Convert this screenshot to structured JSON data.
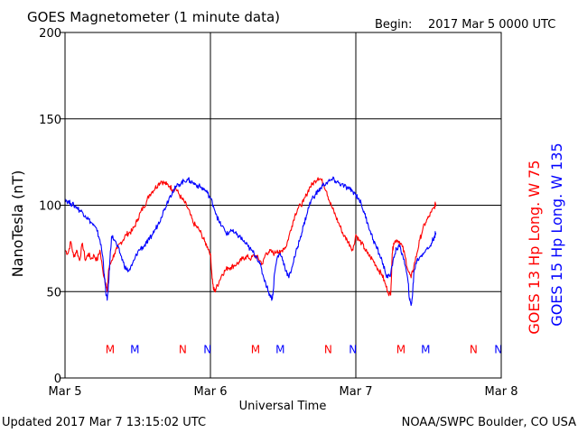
{
  "title": "GOES Magnetometer (1 minute data)",
  "begin_label": "Begin:",
  "begin_date": "2017 Mar 5 0000 UTC",
  "updated": "Updated 2017 Mar  7 13:15:02 UTC",
  "source": "NOAA/SWPC Boulder, CO USA",
  "colors": {
    "goes13": "#ff0000",
    "goes15": "#0000ff",
    "axis": "#000000",
    "background": "#ffffff"
  },
  "chart_data": {
    "type": "line",
    "xlabel": "Universal Time",
    "ylabel": "NanoTesla (nT)",
    "xlim": [
      0,
      3
    ],
    "ylim": [
      0,
      200
    ],
    "yticks": [
      0,
      50,
      100,
      150,
      200
    ],
    "xticks": [
      {
        "value": 0,
        "label": "Mar 5"
      },
      {
        "value": 1,
        "label": "Mar 6"
      },
      {
        "value": 2,
        "label": "Mar 7"
      },
      {
        "value": 3,
        "label": "Mar 8"
      }
    ],
    "grid": true,
    "series": [
      {
        "name": "GOES 13 Hp  Long. W 75",
        "color": "#ff0000",
        "points": [
          [
            0.0,
            74
          ],
          [
            0.02,
            72
          ],
          [
            0.04,
            79
          ],
          [
            0.06,
            70
          ],
          [
            0.08,
            74
          ],
          [
            0.1,
            68
          ],
          [
            0.12,
            78
          ],
          [
            0.14,
            68
          ],
          [
            0.16,
            72
          ],
          [
            0.18,
            69
          ],
          [
            0.2,
            71
          ],
          [
            0.22,
            68
          ],
          [
            0.24,
            74
          ],
          [
            0.26,
            62
          ],
          [
            0.28,
            55
          ],
          [
            0.29,
            50
          ],
          [
            0.3,
            63
          ],
          [
            0.32,
            68
          ],
          [
            0.34,
            72
          ],
          [
            0.36,
            75
          ],
          [
            0.38,
            78
          ],
          [
            0.4,
            80
          ],
          [
            0.42,
            83
          ],
          [
            0.44,
            84
          ],
          [
            0.46,
            85
          ],
          [
            0.48,
            88
          ],
          [
            0.5,
            92
          ],
          [
            0.52,
            96
          ],
          [
            0.54,
            99
          ],
          [
            0.56,
            102
          ],
          [
            0.58,
            106
          ],
          [
            0.6,
            108
          ],
          [
            0.62,
            110
          ],
          [
            0.64,
            112
          ],
          [
            0.66,
            114
          ],
          [
            0.68,
            113
          ],
          [
            0.7,
            112
          ],
          [
            0.72,
            111
          ],
          [
            0.74,
            109
          ],
          [
            0.76,
            110
          ],
          [
            0.78,
            107
          ],
          [
            0.8,
            104
          ],
          [
            0.82,
            102
          ],
          [
            0.84,
            99
          ],
          [
            0.86,
            95
          ],
          [
            0.88,
            90
          ],
          [
            0.9,
            88
          ],
          [
            0.92,
            86
          ],
          [
            0.94,
            83
          ],
          [
            0.96,
            79
          ],
          [
            0.98,
            76
          ],
          [
            1.0,
            72
          ],
          [
            1.01,
            60
          ],
          [
            1.02,
            52
          ],
          [
            1.03,
            50
          ],
          [
            1.04,
            52
          ],
          [
            1.06,
            56
          ],
          [
            1.08,
            60
          ],
          [
            1.1,
            62
          ],
          [
            1.12,
            64
          ],
          [
            1.14,
            64
          ],
          [
            1.16,
            65
          ],
          [
            1.18,
            66
          ],
          [
            1.2,
            67
          ],
          [
            1.22,
            69
          ],
          [
            1.24,
            70
          ],
          [
            1.26,
            70
          ],
          [
            1.28,
            69
          ],
          [
            1.3,
            71
          ],
          [
            1.32,
            70
          ],
          [
            1.34,
            68
          ],
          [
            1.36,
            66
          ],
          [
            1.38,
            72
          ],
          [
            1.4,
            73
          ],
          [
            1.42,
            73
          ],
          [
            1.44,
            72
          ],
          [
            1.46,
            74
          ],
          [
            1.48,
            72
          ],
          [
            1.5,
            75
          ],
          [
            1.52,
            76
          ],
          [
            1.54,
            82
          ],
          [
            1.56,
            88
          ],
          [
            1.58,
            94
          ],
          [
            1.6,
            98
          ],
          [
            1.62,
            100
          ],
          [
            1.64,
            102
          ],
          [
            1.66,
            106
          ],
          [
            1.68,
            110
          ],
          [
            1.7,
            112
          ],
          [
            1.72,
            114
          ],
          [
            1.74,
            116
          ],
          [
            1.76,
            115
          ],
          [
            1.78,
            112
          ],
          [
            1.8,
            108
          ],
          [
            1.82,
            102
          ],
          [
            1.84,
            98
          ],
          [
            1.86,
            94
          ],
          [
            1.88,
            90
          ],
          [
            1.9,
            86
          ],
          [
            1.92,
            82
          ],
          [
            1.94,
            80
          ],
          [
            1.96,
            77
          ],
          [
            1.98,
            74
          ],
          [
            2.0,
            83
          ],
          [
            2.02,
            80
          ],
          [
            2.04,
            78
          ],
          [
            2.06,
            75
          ],
          [
            2.08,
            72
          ],
          [
            2.1,
            70
          ],
          [
            2.12,
            68
          ],
          [
            2.14,
            65
          ],
          [
            2.16,
            62
          ],
          [
            2.18,
            60
          ],
          [
            2.2,
            55
          ],
          [
            2.22,
            50
          ],
          [
            2.24,
            48
          ],
          [
            2.25,
            72
          ],
          [
            2.26,
            78
          ],
          [
            2.28,
            80
          ],
          [
            2.3,
            79
          ],
          [
            2.32,
            76
          ],
          [
            2.34,
            70
          ],
          [
            2.36,
            62
          ],
          [
            2.38,
            58
          ],
          [
            2.4,
            65
          ],
          [
            2.42,
            72
          ],
          [
            2.44,
            80
          ],
          [
            2.46,
            86
          ],
          [
            2.48,
            90
          ],
          [
            2.5,
            93
          ],
          [
            2.52,
            96
          ],
          [
            2.54,
            99
          ],
          [
            2.55,
            101
          ]
        ]
      },
      {
        "name": "GOES 15 Hp  Long. W 135",
        "color": "#0000ff",
        "points": [
          [
            0.0,
            104
          ],
          [
            0.02,
            102
          ],
          [
            0.04,
            101
          ],
          [
            0.06,
            100
          ],
          [
            0.08,
            99
          ],
          [
            0.1,
            97
          ],
          [
            0.12,
            96
          ],
          [
            0.14,
            94
          ],
          [
            0.16,
            92
          ],
          [
            0.18,
            90
          ],
          [
            0.2,
            88
          ],
          [
            0.22,
            85
          ],
          [
            0.24,
            80
          ],
          [
            0.26,
            70
          ],
          [
            0.27,
            60
          ],
          [
            0.28,
            50
          ],
          [
            0.29,
            45
          ],
          [
            0.3,
            55
          ],
          [
            0.31,
            70
          ],
          [
            0.32,
            82
          ],
          [
            0.34,
            80
          ],
          [
            0.36,
            76
          ],
          [
            0.38,
            72
          ],
          [
            0.4,
            67
          ],
          [
            0.42,
            63
          ],
          [
            0.44,
            62
          ],
          [
            0.46,
            65
          ],
          [
            0.48,
            69
          ],
          [
            0.5,
            73
          ],
          [
            0.52,
            75
          ],
          [
            0.54,
            76
          ],
          [
            0.56,
            78
          ],
          [
            0.58,
            80
          ],
          [
            0.6,
            83
          ],
          [
            0.62,
            86
          ],
          [
            0.64,
            89
          ],
          [
            0.66,
            93
          ],
          [
            0.68,
            97
          ],
          [
            0.7,
            101
          ],
          [
            0.72,
            105
          ],
          [
            0.74,
            108
          ],
          [
            0.76,
            110
          ],
          [
            0.78,
            112
          ],
          [
            0.8,
            113
          ],
          [
            0.82,
            114
          ],
          [
            0.84,
            115
          ],
          [
            0.86,
            114
          ],
          [
            0.88,
            113
          ],
          [
            0.9,
            112
          ],
          [
            0.92,
            111
          ],
          [
            0.94,
            110
          ],
          [
            0.96,
            109
          ],
          [
            0.98,
            107
          ],
          [
            1.0,
            104
          ],
          [
            1.02,
            100
          ],
          [
            1.04,
            95
          ],
          [
            1.06,
            90
          ],
          [
            1.08,
            88
          ],
          [
            1.1,
            85
          ],
          [
            1.12,
            83
          ],
          [
            1.14,
            86
          ],
          [
            1.16,
            84
          ],
          [
            1.18,
            83
          ],
          [
            1.2,
            82
          ],
          [
            1.22,
            80
          ],
          [
            1.24,
            78
          ],
          [
            1.26,
            76
          ],
          [
            1.28,
            74
          ],
          [
            1.3,
            72
          ],
          [
            1.32,
            70
          ],
          [
            1.34,
            66
          ],
          [
            1.36,
            60
          ],
          [
            1.38,
            55
          ],
          [
            1.4,
            50
          ],
          [
            1.42,
            46
          ],
          [
            1.43,
            48
          ],
          [
            1.44,
            60
          ],
          [
            1.46,
            70
          ],
          [
            1.48,
            72
          ],
          [
            1.5,
            68
          ],
          [
            1.52,
            62
          ],
          [
            1.54,
            58
          ],
          [
            1.56,
            64
          ],
          [
            1.58,
            70
          ],
          [
            1.6,
            76
          ],
          [
            1.62,
            82
          ],
          [
            1.64,
            88
          ],
          [
            1.66,
            94
          ],
          [
            1.68,
            100
          ],
          [
            1.7,
            104
          ],
          [
            1.72,
            106
          ],
          [
            1.74,
            108
          ],
          [
            1.76,
            110
          ],
          [
            1.78,
            112
          ],
          [
            1.8,
            113
          ],
          [
            1.82,
            114
          ],
          [
            1.84,
            115
          ],
          [
            1.86,
            114
          ],
          [
            1.88,
            113
          ],
          [
            1.9,
            112
          ],
          [
            1.92,
            111
          ],
          [
            1.94,
            110
          ],
          [
            1.96,
            109
          ],
          [
            1.98,
            108
          ],
          [
            2.0,
            106
          ],
          [
            2.02,
            104
          ],
          [
            2.04,
            100
          ],
          [
            2.06,
            95
          ],
          [
            2.08,
            90
          ],
          [
            2.1,
            85
          ],
          [
            2.12,
            80
          ],
          [
            2.14,
            76
          ],
          [
            2.16,
            72
          ],
          [
            2.18,
            68
          ],
          [
            2.2,
            62
          ],
          [
            2.22,
            58
          ],
          [
            2.24,
            60
          ],
          [
            2.26,
            70
          ],
          [
            2.28,
            75
          ],
          [
            2.3,
            76
          ],
          [
            2.32,
            72
          ],
          [
            2.34,
            65
          ],
          [
            2.36,
            55
          ],
          [
            2.37,
            45
          ],
          [
            2.38,
            42
          ],
          [
            2.39,
            48
          ],
          [
            2.4,
            62
          ],
          [
            2.42,
            68
          ],
          [
            2.44,
            70
          ],
          [
            2.46,
            72
          ],
          [
            2.48,
            74
          ],
          [
            2.5,
            75
          ],
          [
            2.52,
            78
          ],
          [
            2.54,
            82
          ],
          [
            2.55,
            84
          ]
        ]
      }
    ],
    "markers": [
      {
        "label": "M",
        "x": 0.31,
        "color": "#ff0000"
      },
      {
        "label": "M",
        "x": 0.48,
        "color": "#0000ff"
      },
      {
        "label": "N",
        "x": 0.81,
        "color": "#ff0000"
      },
      {
        "label": "N",
        "x": 0.98,
        "color": "#0000ff"
      },
      {
        "label": "M",
        "x": 1.31,
        "color": "#ff0000"
      },
      {
        "label": "M",
        "x": 1.48,
        "color": "#0000ff"
      },
      {
        "label": "N",
        "x": 1.81,
        "color": "#ff0000"
      },
      {
        "label": "N",
        "x": 1.98,
        "color": "#0000ff"
      },
      {
        "label": "M",
        "x": 2.31,
        "color": "#ff0000"
      },
      {
        "label": "M",
        "x": 2.48,
        "color": "#0000ff"
      },
      {
        "label": "N",
        "x": 2.81,
        "color": "#ff0000"
      },
      {
        "label": "N",
        "x": 2.98,
        "color": "#0000ff"
      }
    ],
    "marker_y": 17
  }
}
